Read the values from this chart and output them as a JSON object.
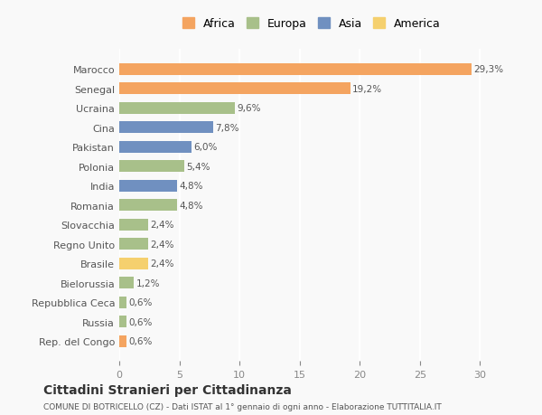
{
  "categories": [
    "Rep. del Congo",
    "Russia",
    "Repubblica Ceca",
    "Bielorussia",
    "Brasile",
    "Regno Unito",
    "Slovacchia",
    "Romania",
    "India",
    "Polonia",
    "Pakistan",
    "Cina",
    "Ucraina",
    "Senegal",
    "Marocco"
  ],
  "values": [
    0.6,
    0.6,
    0.6,
    1.2,
    2.4,
    2.4,
    2.4,
    4.8,
    4.8,
    5.4,
    6.0,
    7.8,
    9.6,
    19.2,
    29.3
  ],
  "labels": [
    "0,6%",
    "0,6%",
    "0,6%",
    "1,2%",
    "2,4%",
    "2,4%",
    "2,4%",
    "4,8%",
    "4,8%",
    "5,4%",
    "6,0%",
    "7,8%",
    "9,6%",
    "19,2%",
    "29,3%"
  ],
  "colors": [
    "#f4a460",
    "#a8c08a",
    "#a8c08a",
    "#a8c08a",
    "#f5d06e",
    "#a8c08a",
    "#a8c08a",
    "#a8c08a",
    "#7090c0",
    "#a8c08a",
    "#7090c0",
    "#7090c0",
    "#a8c08a",
    "#f4a460",
    "#f4a460"
  ],
  "legend": [
    {
      "label": "Africa",
      "color": "#f4a460"
    },
    {
      "label": "Europa",
      "color": "#a8c08a"
    },
    {
      "label": "Asia",
      "color": "#7090c0"
    },
    {
      "label": "America",
      "color": "#f5d06e"
    }
  ],
  "xlim": [
    0,
    32
  ],
  "xticks": [
    0,
    5,
    10,
    15,
    20,
    25,
    30
  ],
  "title": "Cittadini Stranieri per Cittadinanza",
  "subtitle": "COMUNE DI BOTRICELLO (CZ) - Dati ISTAT al 1° gennaio di ogni anno - Elaborazione TUTTITALIA.IT",
  "background_color": "#f9f9f9",
  "bar_height": 0.6,
  "grid_color": "#ffffff"
}
